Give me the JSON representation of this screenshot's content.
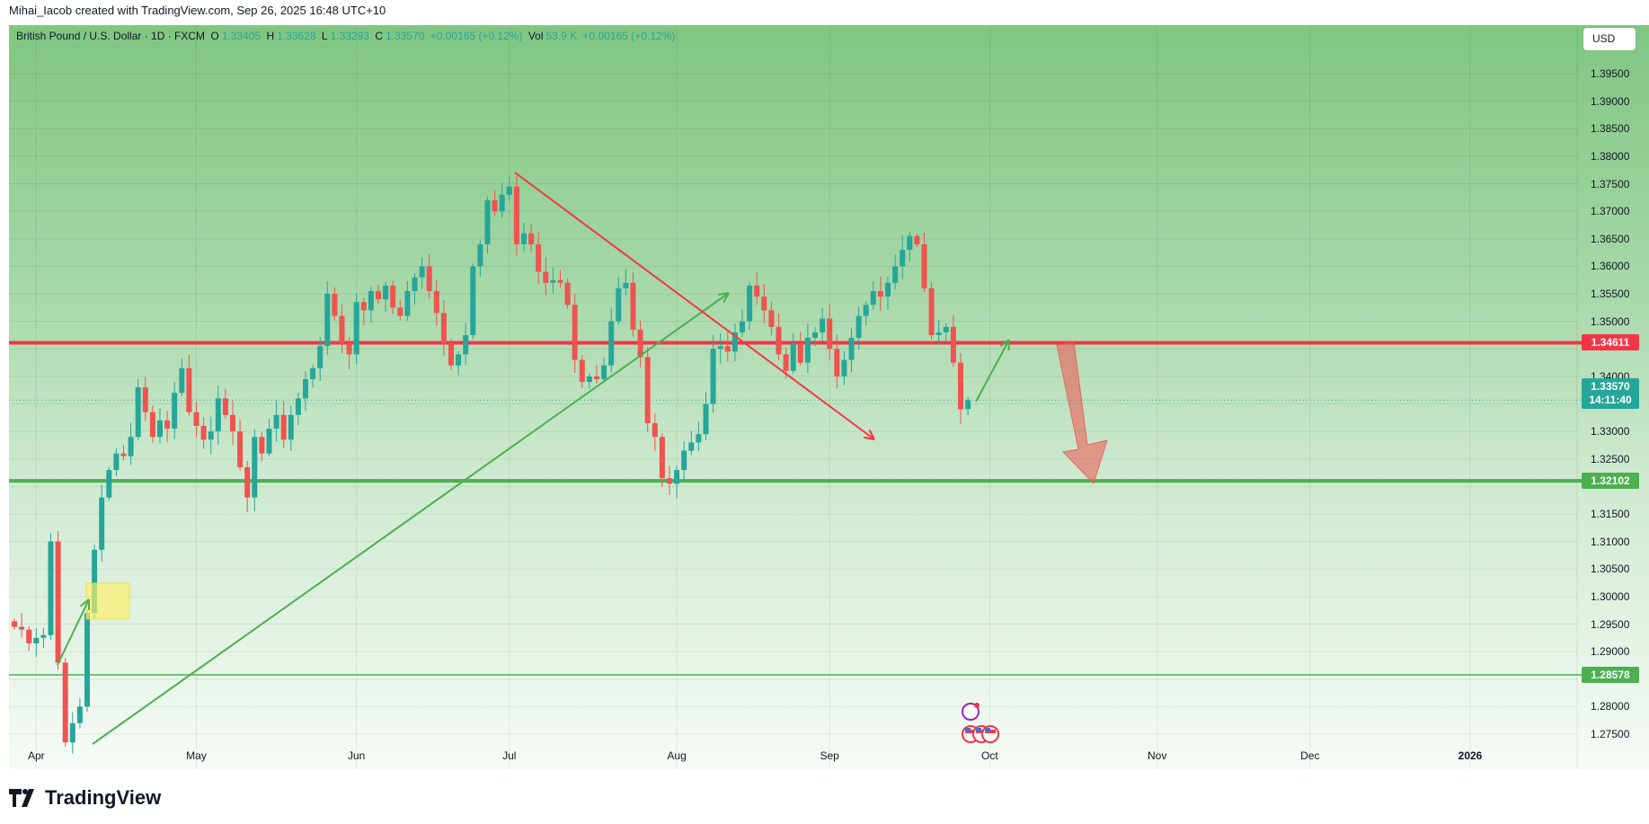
{
  "attribution": "Mihai_Iacob created with TradingView.com, Sep 26, 2025 16:48 UTC+10",
  "legend": {
    "symbol": "British Pound / U.S. Dollar · 1D · FXCM",
    "o_label": "O",
    "o": "1.33405",
    "h_label": "H",
    "h": "1.33628",
    "l_label": "L",
    "l": "1.33293",
    "c_label": "C",
    "c": "1.33570",
    "change": "+0.00165 (+0.12%)",
    "vol_label": "Vol",
    "vol": "53.9 K",
    "vol_change": "+0.00165 (+0.12%)"
  },
  "currency_button": "USD",
  "logo_text": "TradingView",
  "colors": {
    "up": "#26a69a",
    "down": "#ef5350",
    "resistance": "#f23645",
    "support": "#4caf50"
  },
  "chart_data": {
    "type": "candlestick",
    "title": "British Pound / U.S. Dollar · 1D · FXCM",
    "ylim": [
      1.27,
      1.4
    ],
    "y_ticks": [
      "1.39500",
      "1.39000",
      "1.38500",
      "1.38000",
      "1.37500",
      "1.37000",
      "1.36500",
      "1.36000",
      "1.35500",
      "1.35000",
      "1.34000",
      "1.33000",
      "1.32500",
      "1.31500",
      "1.31000",
      "1.30500",
      "1.30000",
      "1.29500",
      "1.29000",
      "1.28000",
      "1.27500"
    ],
    "x_ticks": [
      {
        "label": "Apr",
        "bar": 3
      },
      {
        "label": "May",
        "bar": 25
      },
      {
        "label": "Jun",
        "bar": 47
      },
      {
        "label": "Jul",
        "bar": 68
      },
      {
        "label": "Aug",
        "bar": 91
      },
      {
        "label": "Sep",
        "bar": 112
      },
      {
        "label": "Oct",
        "bar": 134
      },
      {
        "label": "Nov",
        "bar": 157
      },
      {
        "label": "Dec",
        "bar": 178
      },
      {
        "label": "2026",
        "bar": 200
      }
    ],
    "start_date": "2025-03-27",
    "closes": [
      1.2945,
      1.294,
      1.2915,
      1.2925,
      1.293,
      1.31,
      1.288,
      1.2735,
      1.277,
      1.28,
      1.297,
      1.3085,
      1.318,
      1.323,
      1.326,
      1.3255,
      1.329,
      1.338,
      1.3335,
      1.329,
      1.332,
      1.3305,
      1.337,
      1.3415,
      1.3335,
      1.331,
      1.3285,
      1.33,
      1.336,
      1.333,
      1.33,
      1.3235,
      1.318,
      1.329,
      1.326,
      1.3305,
      1.333,
      1.3285,
      1.333,
      1.336,
      1.3395,
      1.3415,
      1.3455,
      1.355,
      1.351,
      1.346,
      1.344,
      1.3535,
      1.352,
      1.3555,
      1.354,
      1.3565,
      1.3525,
      1.351,
      1.3555,
      1.358,
      1.36,
      1.3555,
      1.3515,
      1.346,
      1.342,
      1.344,
      1.3475,
      1.36,
      1.364,
      1.372,
      1.37,
      1.373,
      1.3745,
      1.364,
      1.366,
      1.364,
      1.359,
      1.357,
      1.3575,
      1.357,
      1.353,
      1.343,
      1.339,
      1.34,
      1.3395,
      1.342,
      1.35,
      1.356,
      1.357,
      1.3485,
      1.3435,
      1.3315,
      1.329,
      1.3215,
      1.3205,
      1.323,
      1.3265,
      1.328,
      1.3295,
      1.335,
      1.345,
      1.3455,
      1.3445,
      1.348,
      1.35,
      1.3565,
      1.3545,
      1.352,
      1.349,
      1.344,
      1.341,
      1.346,
      1.3425,
      1.347,
      1.348,
      1.3505,
      1.345,
      1.34,
      1.343,
      1.347,
      1.351,
      1.353,
      1.3555,
      1.3545,
      1.357,
      1.36,
      1.363,
      1.3655,
      1.364,
      1.356,
      1.3475,
      1.348,
      1.349,
      1.3425,
      1.334,
      1.3357
    ],
    "last_bar": {
      "open": 1.33405,
      "high": 1.33628,
      "low": 1.33293,
      "close": 1.3357
    },
    "levels": [
      {
        "name": "resistance",
        "price": 1.34611,
        "label": "1.34611",
        "color": "#f23645"
      },
      {
        "name": "support",
        "price": 1.32102,
        "label": "1.32102",
        "color": "#4caf50"
      },
      {
        "name": "support-low",
        "price": 1.28578,
        "label": "1.28578",
        "color": "#4caf50"
      }
    ],
    "current_price": {
      "label": "1.33570",
      "countdown": "14:11:40",
      "price": 1.3357
    }
  }
}
